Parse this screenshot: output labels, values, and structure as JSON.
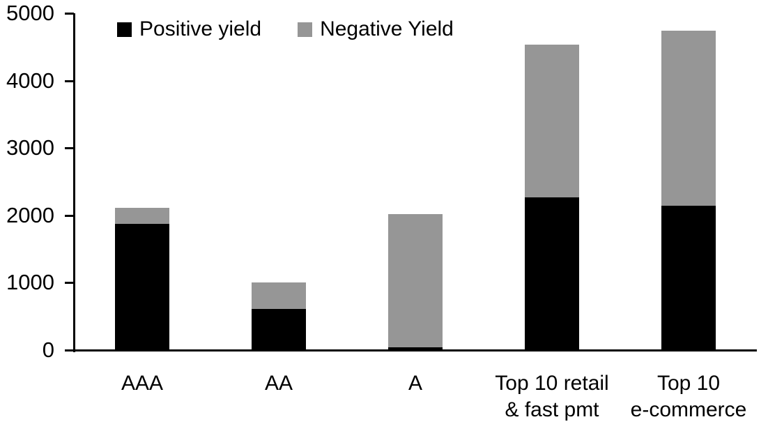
{
  "legend": {
    "items": [
      {
        "label": "Positive yield",
        "color": "#000000"
      },
      {
        "label": "Negative Yield",
        "color": "#969696"
      }
    ]
  },
  "chart_data": {
    "type": "bar",
    "stacked": true,
    "title": "",
    "xlabel": "",
    "ylabel": "",
    "categories": [
      "AAA",
      "AA",
      "A",
      "Top 10 retail & fast pmt",
      "Top 10 e-commerce"
    ],
    "category_label_lines": [
      [
        "AAA"
      ],
      [
        "AA"
      ],
      [
        "A"
      ],
      [
        "Top 10 retail",
        "& fast pmt"
      ],
      [
        "Top 10",
        "e-commerce"
      ]
    ],
    "series": [
      {
        "name": "Positive yield",
        "color": "#000000",
        "values": [
          1870,
          610,
          45,
          2270,
          2140
        ]
      },
      {
        "name": "Negative Yield",
        "color": "#969696",
        "values": [
          240,
          390,
          1975,
          2265,
          2600
        ]
      }
    ],
    "totals": [
      2110,
      1000,
      2020,
      4535,
      4740
    ],
    "ylim": [
      0,
      5000
    ],
    "yticks": [
      0,
      1000,
      2000,
      3000,
      4000,
      5000
    ],
    "grid": false,
    "legend_position": "top-left",
    "axis_color": "#000000",
    "background_color": "#ffffff"
  }
}
